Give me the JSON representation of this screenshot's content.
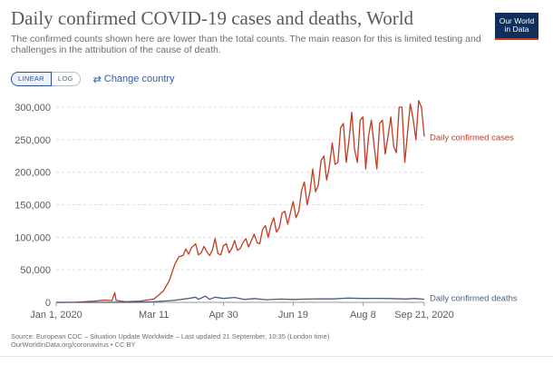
{
  "header": {
    "title": "Daily confirmed COVID-19 cases and deaths, World",
    "subtitle": "The confirmed counts shown here are lower than the total counts. The main reason for this is limited testing and challenges in the attribution of the cause of death.",
    "logo_line1": "Our World",
    "logo_line2": "in Data"
  },
  "controls": {
    "linear_label": "LINEAR",
    "log_label": "LOG",
    "change_country_label": "Change country",
    "selected_scale": "linear"
  },
  "footer": {
    "source": "Source: European CDC – Situation Update Worldwide – Last updated 21 September, 10:35 (London time)",
    "license": "OurWorldInData.org/coronavirus • CC BY"
  },
  "colors": {
    "cases": "#c23b22",
    "deaths": "#4a5e7f",
    "grid": "#dcdcdc",
    "text": "#5b5b5b",
    "brand": "#0e2e5c"
  },
  "chart_data": {
    "type": "line",
    "title": "Daily confirmed COVID-19 cases and deaths, World",
    "xlabel": "",
    "ylabel": "",
    "ylim": [
      0,
      300000
    ],
    "xlim": [
      "2020-01-01",
      "2020-09-21"
    ],
    "y_ticks": [
      {
        "value": 0,
        "label": "0"
      },
      {
        "value": 50000,
        "label": "50,000"
      },
      {
        "value": 100000,
        "label": "100,000"
      },
      {
        "value": 150000,
        "label": "150,000"
      },
      {
        "value": 200000,
        "label": "200,000"
      },
      {
        "value": 250000,
        "label": "250,000"
      },
      {
        "value": 300000,
        "label": "300,000"
      }
    ],
    "x_ticks": [
      {
        "date": "2020-01-01",
        "label": "Jan 1, 2020"
      },
      {
        "date": "2020-03-11",
        "label": "Mar 11"
      },
      {
        "date": "2020-04-30",
        "label": "Apr 30"
      },
      {
        "date": "2020-06-19",
        "label": "Jun 19"
      },
      {
        "date": "2020-08-08",
        "label": "Aug 8"
      },
      {
        "date": "2020-09-21",
        "label": "Sep 21, 2020"
      }
    ],
    "grid": "horizontal dashed",
    "legend": "inline labels at line ends",
    "series": [
      {
        "name": "Daily confirmed cases",
        "points": [
          [
            "2020-01-01",
            0
          ],
          [
            "2020-01-15",
            100
          ],
          [
            "2020-01-28",
            2000
          ],
          [
            "2020-02-05",
            3500
          ],
          [
            "2020-02-10",
            2800
          ],
          [
            "2020-02-12",
            15000
          ],
          [
            "2020-02-13",
            3000
          ],
          [
            "2020-02-20",
            1000
          ],
          [
            "2020-03-01",
            2000
          ],
          [
            "2020-03-06",
            3500
          ],
          [
            "2020-03-11",
            5000
          ],
          [
            "2020-03-15",
            12000
          ],
          [
            "2020-03-18",
            18000
          ],
          [
            "2020-03-22",
            33000
          ],
          [
            "2020-03-26",
            58000
          ],
          [
            "2020-03-29",
            70000
          ],
          [
            "2020-04-01",
            72000
          ],
          [
            "2020-04-03",
            82000
          ],
          [
            "2020-04-05",
            74000
          ],
          [
            "2020-04-07",
            84000
          ],
          [
            "2020-04-10",
            90000
          ],
          [
            "2020-04-12",
            73000
          ],
          [
            "2020-04-14",
            76000
          ],
          [
            "2020-04-16",
            86000
          ],
          [
            "2020-04-18",
            78000
          ],
          [
            "2020-04-20",
            72000
          ],
          [
            "2020-04-22",
            80000
          ],
          [
            "2020-04-24",
            98000
          ],
          [
            "2020-04-26",
            75000
          ],
          [
            "2020-04-28",
            73000
          ],
          [
            "2020-04-30",
            87000
          ],
          [
            "2020-05-02",
            90000
          ],
          [
            "2020-05-04",
            76000
          ],
          [
            "2020-05-06",
            83000
          ],
          [
            "2020-05-08",
            95000
          ],
          [
            "2020-05-10",
            80000
          ],
          [
            "2020-05-12",
            83000
          ],
          [
            "2020-05-14",
            92000
          ],
          [
            "2020-05-16",
            98000
          ],
          [
            "2020-05-18",
            85000
          ],
          [
            "2020-05-20",
            95000
          ],
          [
            "2020-05-22",
            105000
          ],
          [
            "2020-05-24",
            92000
          ],
          [
            "2020-05-26",
            90000
          ],
          [
            "2020-05-28",
            112000
          ],
          [
            "2020-05-30",
            118000
          ],
          [
            "2020-06-01",
            100000
          ],
          [
            "2020-06-03",
            118000
          ],
          [
            "2020-06-05",
            130000
          ],
          [
            "2020-06-07",
            108000
          ],
          [
            "2020-06-09",
            115000
          ],
          [
            "2020-06-11",
            137000
          ],
          [
            "2020-06-13",
            140000
          ],
          [
            "2020-06-15",
            120000
          ],
          [
            "2020-06-17",
            138000
          ],
          [
            "2020-06-19",
            155000
          ],
          [
            "2020-06-21",
            130000
          ],
          [
            "2020-06-23",
            140000
          ],
          [
            "2020-06-25",
            172000
          ],
          [
            "2020-06-27",
            185000
          ],
          [
            "2020-06-29",
            150000
          ],
          [
            "2020-07-01",
            170000
          ],
          [
            "2020-07-03",
            205000
          ],
          [
            "2020-07-05",
            170000
          ],
          [
            "2020-07-07",
            180000
          ],
          [
            "2020-07-09",
            218000
          ],
          [
            "2020-07-11",
            225000
          ],
          [
            "2020-07-13",
            188000
          ],
          [
            "2020-07-15",
            210000
          ],
          [
            "2020-07-17",
            245000
          ],
          [
            "2020-07-19",
            212000
          ],
          [
            "2020-07-21",
            215000
          ],
          [
            "2020-07-23",
            268000
          ],
          [
            "2020-07-25",
            275000
          ],
          [
            "2020-07-27",
            215000
          ],
          [
            "2020-07-29",
            250000
          ],
          [
            "2020-07-31",
            292000
          ],
          [
            "2020-08-02",
            235000
          ],
          [
            "2020-08-04",
            215000
          ],
          [
            "2020-08-06",
            280000
          ],
          [
            "2020-08-08",
            285000
          ],
          [
            "2020-08-10",
            205000
          ],
          [
            "2020-08-12",
            255000
          ],
          [
            "2020-08-14",
            280000
          ],
          [
            "2020-08-16",
            242000
          ],
          [
            "2020-08-18",
            205000
          ],
          [
            "2020-08-20",
            275000
          ],
          [
            "2020-08-22",
            280000
          ],
          [
            "2020-08-24",
            228000
          ],
          [
            "2020-08-26",
            255000
          ],
          [
            "2020-08-28",
            285000
          ],
          [
            "2020-08-30",
            240000
          ],
          [
            "2020-09-01",
            230000
          ],
          [
            "2020-09-03",
            300000
          ],
          [
            "2020-09-05",
            300000
          ],
          [
            "2020-09-07",
            215000
          ],
          [
            "2020-09-09",
            260000
          ],
          [
            "2020-09-11",
            305000
          ],
          [
            "2020-09-13",
            282000
          ],
          [
            "2020-09-15",
            250000
          ],
          [
            "2020-09-17",
            310000
          ],
          [
            "2020-09-19",
            300000
          ],
          [
            "2020-09-21",
            255000
          ]
        ]
      },
      {
        "name": "Daily confirmed deaths",
        "points": [
          [
            "2020-01-01",
            0
          ],
          [
            "2020-02-01",
            50
          ],
          [
            "2020-03-01",
            300
          ],
          [
            "2020-03-11",
            900
          ],
          [
            "2020-03-25",
            3000
          ],
          [
            "2020-04-05",
            6000
          ],
          [
            "2020-04-10",
            8000
          ],
          [
            "2020-04-12",
            4800
          ],
          [
            "2020-04-17",
            9500
          ],
          [
            "2020-04-20",
            4800
          ],
          [
            "2020-04-24",
            8000
          ],
          [
            "2020-04-30",
            6000
          ],
          [
            "2020-05-08",
            7500
          ],
          [
            "2020-05-15",
            4500
          ],
          [
            "2020-05-22",
            5800
          ],
          [
            "2020-05-31",
            4000
          ],
          [
            "2020-06-10",
            5000
          ],
          [
            "2020-06-19",
            4500
          ],
          [
            "2020-06-28",
            5000
          ],
          [
            "2020-07-08",
            5500
          ],
          [
            "2020-07-18",
            5300
          ],
          [
            "2020-07-28",
            6500
          ],
          [
            "2020-08-08",
            6000
          ],
          [
            "2020-08-18",
            6200
          ],
          [
            "2020-08-28",
            5800
          ],
          [
            "2020-09-08",
            5200
          ],
          [
            "2020-09-14",
            6000
          ],
          [
            "2020-09-21",
            4800
          ]
        ]
      }
    ]
  }
}
